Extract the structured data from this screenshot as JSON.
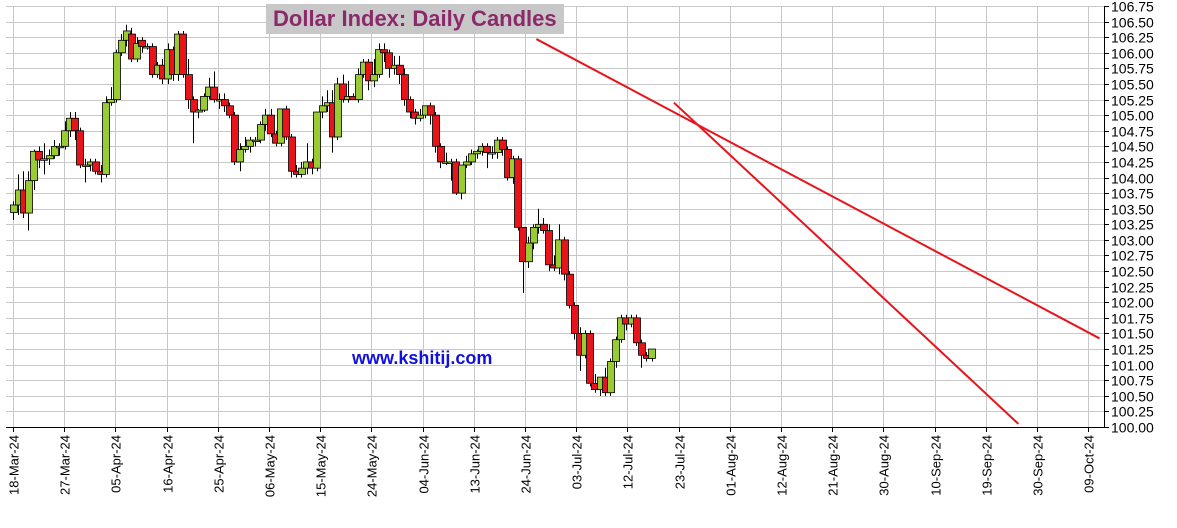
{
  "chart_data": {
    "type": "candlestick",
    "title": "Dollar Index: Daily Candles",
    "watermark": "www.kshitij.com",
    "ylim": [
      100.0,
      106.75
    ],
    "yticks": [
      "100.00",
      "100.25",
      "100.50",
      "100.75",
      "101.00",
      "101.25",
      "101.50",
      "101.75",
      "102.00",
      "102.25",
      "102.50",
      "102.75",
      "103.00",
      "103.25",
      "103.50",
      "103.75",
      "104.00",
      "104.25",
      "104.50",
      "104.75",
      "105.00",
      "105.25",
      "105.50",
      "105.75",
      "106.00",
      "106.25",
      "106.50",
      "106.75"
    ],
    "xticks": [
      "18-Mar-24",
      "27-Mar-24",
      "05-Apr-24",
      "16-Apr-24",
      "25-Apr-24",
      "06-May-24",
      "15-May-24",
      "24-May-24",
      "04-Jun-24",
      "13-Jun-24",
      "24-Jun-24",
      "03-Jul-24",
      "12-Jul-24",
      "23-Jul-24",
      "01-Aug-24",
      "12-Aug-24",
      "21-Aug-24",
      "30-Aug-24",
      "10-Sep-24",
      "19-Sep-24",
      "30-Sep-24",
      "09-Oct-24"
    ],
    "grid": true,
    "colors": {
      "up": "#99cc33",
      "down": "#e8141c",
      "trendline": "#e8141c",
      "grid": "#c8c8c8"
    },
    "candles": [
      {
        "o": 103.44,
        "h": 103.62,
        "l": 103.32,
        "c": 103.56
      },
      {
        "o": 103.56,
        "h": 104.05,
        "l": 103.4,
        "c": 103.8
      },
      {
        "o": 103.8,
        "h": 104.1,
        "l": 103.35,
        "c": 103.43
      },
      {
        "o": 103.43,
        "h": 104.1,
        "l": 103.15,
        "c": 103.95
      },
      {
        "o": 103.95,
        "h": 104.45,
        "l": 103.8,
        "c": 104.42
      },
      {
        "o": 104.42,
        "h": 104.5,
        "l": 104.15,
        "c": 104.28
      },
      {
        "o": 104.28,
        "h": 104.55,
        "l": 104.05,
        "c": 104.3
      },
      {
        "o": 104.3,
        "h": 104.45,
        "l": 104.2,
        "c": 104.35
      },
      {
        "o": 104.35,
        "h": 104.6,
        "l": 104.3,
        "c": 104.5
      },
      {
        "o": 104.5,
        "h": 104.55,
        "l": 104.35,
        "c": 104.5
      },
      {
        "o": 104.5,
        "h": 104.9,
        "l": 104.45,
        "c": 104.75
      },
      {
        "o": 104.75,
        "h": 105.05,
        "l": 104.65,
        "c": 104.95
      },
      {
        "o": 104.95,
        "h": 105.05,
        "l": 104.6,
        "c": 104.75
      },
      {
        "o": 104.75,
        "h": 104.8,
        "l": 104.15,
        "c": 104.2
      },
      {
        "o": 104.2,
        "h": 104.3,
        "l": 103.92,
        "c": 104.2
      },
      {
        "o": 104.2,
        "h": 104.3,
        "l": 104.1,
        "c": 104.25
      },
      {
        "o": 104.25,
        "h": 104.3,
        "l": 104.05,
        "c": 104.1
      },
      {
        "o": 104.1,
        "h": 104.2,
        "l": 103.92,
        "c": 104.05
      },
      {
        "o": 104.05,
        "h": 105.3,
        "l": 104.0,
        "c": 105.2
      },
      {
        "o": 105.2,
        "h": 105.45,
        "l": 105.15,
        "c": 105.25
      },
      {
        "o": 105.25,
        "h": 106.05,
        "l": 105.2,
        "c": 106.0
      },
      {
        "o": 106.0,
        "h": 106.3,
        "l": 105.95,
        "c": 106.2
      },
      {
        "o": 106.2,
        "h": 106.45,
        "l": 106.1,
        "c": 106.35
      },
      {
        "o": 106.3,
        "h": 106.4,
        "l": 105.85,
        "c": 105.9
      },
      {
        "o": 105.9,
        "h": 106.25,
        "l": 105.85,
        "c": 106.15
      },
      {
        "o": 106.2,
        "h": 106.25,
        "l": 106.0,
        "c": 106.1
      },
      {
        "o": 106.1,
        "h": 106.15,
        "l": 106.05,
        "c": 106.1
      },
      {
        "o": 106.1,
        "h": 106.15,
        "l": 105.6,
        "c": 105.65
      },
      {
        "o": 105.65,
        "h": 105.85,
        "l": 105.6,
        "c": 105.8
      },
      {
        "o": 105.8,
        "h": 105.9,
        "l": 105.5,
        "c": 105.58
      },
      {
        "o": 105.58,
        "h": 106.15,
        "l": 105.5,
        "c": 106.05
      },
      {
        "o": 106.05,
        "h": 106.1,
        "l": 105.55,
        "c": 105.65
      },
      {
        "o": 105.65,
        "h": 106.35,
        "l": 105.55,
        "c": 106.3
      },
      {
        "o": 106.3,
        "h": 106.35,
        "l": 105.6,
        "c": 105.65
      },
      {
        "o": 105.65,
        "h": 105.9,
        "l": 105.1,
        "c": 105.25
      },
      {
        "o": 105.25,
        "h": 105.3,
        "l": 104.55,
        "c": 105.05
      },
      {
        "o": 105.05,
        "h": 105.1,
        "l": 104.95,
        "c": 105.08
      },
      {
        "o": 105.08,
        "h": 105.35,
        "l": 105.05,
        "c": 105.3
      },
      {
        "o": 105.3,
        "h": 105.6,
        "l": 105.25,
        "c": 105.45
      },
      {
        "o": 105.45,
        "h": 105.7,
        "l": 105.2,
        "c": 105.25
      },
      {
        "o": 105.25,
        "h": 105.35,
        "l": 105.1,
        "c": 105.25
      },
      {
        "o": 105.25,
        "h": 105.35,
        "l": 105.05,
        "c": 105.15
      },
      {
        "o": 105.15,
        "h": 105.2,
        "l": 104.95,
        "c": 105.0
      },
      {
        "o": 105.0,
        "h": 105.05,
        "l": 104.2,
        "c": 104.25
      },
      {
        "o": 104.25,
        "h": 104.55,
        "l": 104.1,
        "c": 104.45
      },
      {
        "o": 104.45,
        "h": 104.65,
        "l": 104.4,
        "c": 104.5
      },
      {
        "o": 104.5,
        "h": 104.65,
        "l": 104.4,
        "c": 104.6
      },
      {
        "o": 104.6,
        "h": 104.65,
        "l": 104.5,
        "c": 104.6
      },
      {
        "o": 104.6,
        "h": 104.9,
        "l": 104.55,
        "c": 104.85
      },
      {
        "o": 104.85,
        "h": 105.1,
        "l": 104.75,
        "c": 105.0
      },
      {
        "o": 105.0,
        "h": 105.1,
        "l": 104.65,
        "c": 104.7
      },
      {
        "o": 104.7,
        "h": 104.75,
        "l": 104.5,
        "c": 104.55
      },
      {
        "o": 104.55,
        "h": 105.1,
        "l": 104.5,
        "c": 105.1
      },
      {
        "o": 105.1,
        "h": 105.15,
        "l": 104.6,
        "c": 104.65
      },
      {
        "o": 104.65,
        "h": 104.7,
        "l": 104.0,
        "c": 104.1
      },
      {
        "o": 104.1,
        "h": 104.2,
        "l": 104.0,
        "c": 104.05
      },
      {
        "o": 104.05,
        "h": 104.25,
        "l": 104.0,
        "c": 104.15
      },
      {
        "o": 104.15,
        "h": 104.55,
        "l": 104.05,
        "c": 104.25
      },
      {
        "o": 104.25,
        "h": 104.3,
        "l": 104.05,
        "c": 104.15
      },
      {
        "o": 104.15,
        "h": 105.05,
        "l": 104.1,
        "c": 105.05
      },
      {
        "o": 105.05,
        "h": 105.3,
        "l": 104.95,
        "c": 105.15
      },
      {
        "o": 105.15,
        "h": 105.4,
        "l": 105.05,
        "c": 105.2
      },
      {
        "o": 105.2,
        "h": 105.4,
        "l": 104.4,
        "c": 104.65
      },
      {
        "o": 104.65,
        "h": 105.6,
        "l": 104.6,
        "c": 105.5
      },
      {
        "o": 105.5,
        "h": 105.65,
        "l": 105.2,
        "c": 105.25
      },
      {
        "o": 105.25,
        "h": 105.55,
        "l": 105.2,
        "c": 105.3
      },
      {
        "o": 105.3,
        "h": 105.35,
        "l": 105.25,
        "c": 105.25
      },
      {
        "o": 105.25,
        "h": 105.75,
        "l": 105.2,
        "c": 105.65
      },
      {
        "o": 105.65,
        "h": 105.9,
        "l": 105.6,
        "c": 105.85
      },
      {
        "o": 105.85,
        "h": 105.9,
        "l": 105.4,
        "c": 105.55
      },
      {
        "o": 105.55,
        "h": 105.9,
        "l": 105.45,
        "c": 105.65
      },
      {
        "o": 105.65,
        "h": 106.15,
        "l": 105.6,
        "c": 106.05
      },
      {
        "o": 106.05,
        "h": 106.15,
        "l": 105.85,
        "c": 106.0
      },
      {
        "o": 106.0,
        "h": 106.05,
        "l": 105.6,
        "c": 105.75
      },
      {
        "o": 105.75,
        "h": 105.95,
        "l": 105.65,
        "c": 105.8
      },
      {
        "o": 105.8,
        "h": 105.95,
        "l": 105.5,
        "c": 105.65
      },
      {
        "o": 105.65,
        "h": 105.75,
        "l": 105.15,
        "c": 105.25
      },
      {
        "o": 105.25,
        "h": 105.3,
        "l": 104.95,
        "c": 105.05
      },
      {
        "o": 105.05,
        "h": 105.1,
        "l": 104.85,
        "c": 104.95
      },
      {
        "o": 104.95,
        "h": 105.1,
        "l": 104.9,
        "c": 105.0
      },
      {
        "o": 105.0,
        "h": 105.15,
        "l": 104.95,
        "c": 105.15
      },
      {
        "o": 105.15,
        "h": 105.2,
        "l": 104.85,
        "c": 105.0
      },
      {
        "o": 105.0,
        "h": 105.05,
        "l": 104.4,
        "c": 104.5
      },
      {
        "o": 104.5,
        "h": 104.55,
        "l": 104.15,
        "c": 104.25
      },
      {
        "o": 104.25,
        "h": 104.4,
        "l": 104.2,
        "c": 104.25
      },
      {
        "o": 104.25,
        "h": 104.3,
        "l": 103.95,
        "c": 104.25
      },
      {
        "o": 104.25,
        "h": 104.3,
        "l": 103.72,
        "c": 103.75
      },
      {
        "o": 103.75,
        "h": 104.2,
        "l": 103.65,
        "c": 104.2
      },
      {
        "o": 104.2,
        "h": 104.35,
        "l": 104.15,
        "c": 104.25
      },
      {
        "o": 104.25,
        "h": 104.45,
        "l": 104.2,
        "c": 104.38
      },
      {
        "o": 104.38,
        "h": 104.45,
        "l": 104.3,
        "c": 104.42
      },
      {
        "o": 104.42,
        "h": 104.55,
        "l": 104.35,
        "c": 104.5
      },
      {
        "o": 104.5,
        "h": 104.55,
        "l": 104.15,
        "c": 104.4
      },
      {
        "o": 104.4,
        "h": 104.5,
        "l": 104.3,
        "c": 104.4
      },
      {
        "o": 104.4,
        "h": 104.65,
        "l": 104.3,
        "c": 104.6
      },
      {
        "o": 104.6,
        "h": 104.65,
        "l": 104.35,
        "c": 104.45
      },
      {
        "o": 104.45,
        "h": 104.5,
        "l": 103.95,
        "c": 104.0
      },
      {
        "o": 104.0,
        "h": 104.35,
        "l": 103.9,
        "c": 104.3
      },
      {
        "o": 104.3,
        "h": 104.35,
        "l": 103.15,
        "c": 103.2
      },
      {
        "o": 103.2,
        "h": 103.2,
        "l": 102.15,
        "c": 102.65
      },
      {
        "o": 102.65,
        "h": 103.05,
        "l": 102.55,
        "c": 102.95
      },
      {
        "o": 102.95,
        "h": 103.25,
        "l": 102.85,
        "c": 103.2
      },
      {
        "o": 103.2,
        "h": 103.5,
        "l": 103.1,
        "c": 103.25
      },
      {
        "o": 103.25,
        "h": 103.35,
        "l": 103.1,
        "c": 103.15
      },
      {
        "o": 103.15,
        "h": 103.25,
        "l": 102.5,
        "c": 102.6
      },
      {
        "o": 102.6,
        "h": 102.75,
        "l": 102.5,
        "c": 102.55
      },
      {
        "o": 102.55,
        "h": 103.25,
        "l": 102.45,
        "c": 103.0
      },
      {
        "o": 103.0,
        "h": 103.05,
        "l": 102.35,
        "c": 102.45
      },
      {
        "o": 102.45,
        "h": 102.5,
        "l": 101.9,
        "c": 101.95
      },
      {
        "o": 101.95,
        "h": 102.0,
        "l": 101.4,
        "c": 101.5
      },
      {
        "o": 101.5,
        "h": 101.6,
        "l": 100.9,
        "c": 101.15
      },
      {
        "o": 101.15,
        "h": 101.55,
        "l": 101.1,
        "c": 101.5
      },
      {
        "o": 101.5,
        "h": 101.55,
        "l": 100.65,
        "c": 100.7
      },
      {
        "o": 100.7,
        "h": 100.85,
        "l": 100.55,
        "c": 100.6
      },
      {
        "o": 100.6,
        "h": 100.8,
        "l": 100.5,
        "c": 100.8
      },
      {
        "o": 100.8,
        "h": 100.95,
        "l": 100.5,
        "c": 100.55
      },
      {
        "o": 100.55,
        "h": 101.1,
        "l": 100.5,
        "c": 101.05
      },
      {
        "o": 101.05,
        "h": 101.45,
        "l": 100.95,
        "c": 101.4
      },
      {
        "o": 101.4,
        "h": 101.8,
        "l": 101.35,
        "c": 101.75
      },
      {
        "o": 101.75,
        "h": 101.8,
        "l": 101.55,
        "c": 101.65
      },
      {
        "o": 101.65,
        "h": 101.8,
        "l": 101.6,
        "c": 101.75
      },
      {
        "o": 101.75,
        "h": 101.8,
        "l": 101.3,
        "c": 101.35
      },
      {
        "o": 101.35,
        "h": 101.4,
        "l": 100.95,
        "c": 101.15
      },
      {
        "o": 101.15,
        "h": 101.2,
        "l": 101.05,
        "c": 101.1
      },
      {
        "o": 101.1,
        "h": 101.25,
        "l": 101.05,
        "c": 101.25
      }
    ],
    "trendlines": [
      {
        "from": {
          "x": "26-Jun-24",
          "y": 106.22
        },
        "to": {
          "x": "11-Oct-24",
          "y": 101.42
        }
      },
      {
        "from": {
          "x": "22-Jul-24",
          "y": 105.2
        },
        "to": {
          "x": "26-Sep-24",
          "y": 100.05
        }
      }
    ]
  }
}
